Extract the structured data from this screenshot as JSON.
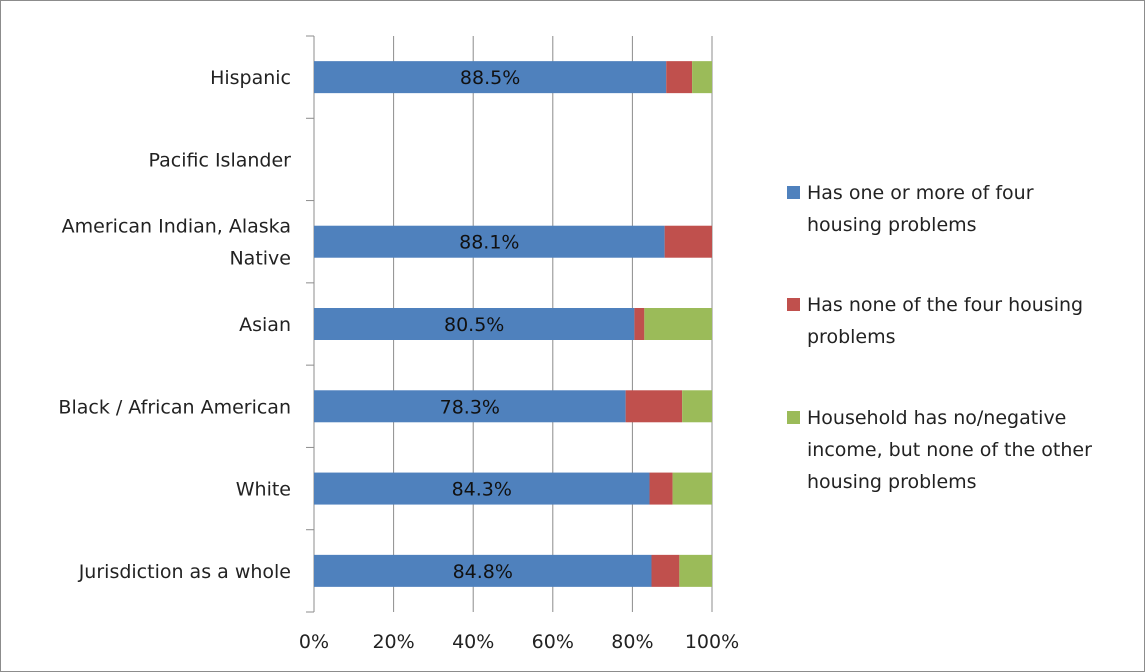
{
  "chart_data": {
    "type": "bar",
    "orientation": "horizontal",
    "stacked": "percent",
    "title": "",
    "xlabel": "",
    "ylabel": "",
    "xlim": [
      0,
      100
    ],
    "x_ticks": [
      "0%",
      "20%",
      "40%",
      "60%",
      "80%",
      "100%"
    ],
    "grid": true,
    "legend_position": "right",
    "categories": [
      "Hispanic",
      "Pacific Islander",
      "American Indian, Alaska Native",
      "Asian",
      "Black / African American",
      "White",
      "Jurisdiction as a whole"
    ],
    "category_display_lines": [
      [
        "Hispanic"
      ],
      [
        "Pacific Islander"
      ],
      [
        "American Indian, Alaska",
        "Native"
      ],
      [
        "Asian"
      ],
      [
        "Black / African American"
      ],
      [
        "White"
      ],
      [
        "Jurisdiction as a whole"
      ]
    ],
    "series": [
      {
        "name": "Has one or more of four housing problems",
        "legend_lines": [
          "Has one or more of four",
          "housing problems"
        ],
        "color": "#4f81bd",
        "values": [
          88.5,
          0,
          88.1,
          80.5,
          78.3,
          84.3,
          84.8
        ],
        "data_labels": [
          "88.5%",
          "",
          "88.1%",
          "80.5%",
          "78.3%",
          "84.3%",
          "84.8%"
        ]
      },
      {
        "name": "Has none of the four housing problems",
        "legend_lines": [
          "Has none of the four housing",
          "problems"
        ],
        "color": "#c0504d",
        "values": [
          6.5,
          0,
          11.9,
          2.5,
          14.2,
          5.8,
          7.0
        ]
      },
      {
        "name": "Household has no/negative income, but none of the other housing problems",
        "legend_lines": [
          "Household has no/negative",
          "income, but none of the other",
          "housing problems"
        ],
        "color": "#9bbb59",
        "values": [
          5.0,
          0,
          0,
          17.0,
          7.5,
          9.9,
          8.2
        ]
      }
    ]
  }
}
